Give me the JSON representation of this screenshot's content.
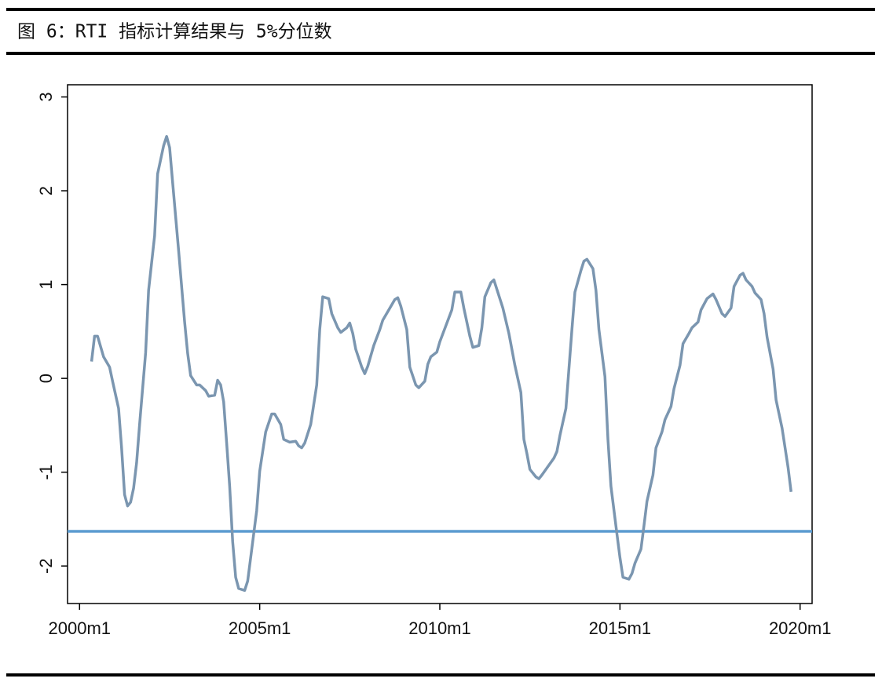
{
  "chart_data": {
    "type": "line",
    "title": "图 6：RTI 指标计算结果与 5%分位数",
    "color": "#7b96b0",
    "hline": -1.63,
    "hline_color": "#5b9bd0",
    "xlim": [
      "1999m9",
      "2020m5"
    ],
    "xticks": [
      "2000m1",
      "2005m1",
      "2010m1",
      "2015m1",
      "2020m1"
    ],
    "ylim": [
      -2.4,
      3.13
    ],
    "yticks": [
      -2,
      -1,
      0,
      1,
      2,
      3
    ],
    "x": [
      "2000m5",
      "2000m6",
      "2000m7",
      "2000m9",
      "2000m11",
      "2000m12",
      "2001m2",
      "2001m3",
      "2001m4",
      "2001m5",
      "2001m6",
      "2001m7",
      "2001m8",
      "2001m9",
      "2001m11",
      "2001m12",
      "2002m2",
      "2002m3",
      "2002m5",
      "2002m6",
      "2002m7",
      "2002m8",
      "2002m10",
      "2002m12",
      "2003m1",
      "2003m2",
      "2003m4",
      "2003m5",
      "2003m7",
      "2003m8",
      "2003m10",
      "2003m11",
      "2003m12",
      "2004m1",
      "2004m2",
      "2004m3",
      "2004m4",
      "2004m5",
      "2004m6",
      "2004m8",
      "2004m9",
      "2004m10",
      "2004m12",
      "2005m1",
      "2005m3",
      "2005m5",
      "2005m6",
      "2005m8",
      "2005m9",
      "2005m11",
      "2006m1",
      "2006m2",
      "2006m3",
      "2006m4",
      "2006m6",
      "2006m8",
      "2006m9",
      "2006m10",
      "2006m12",
      "2007m1",
      "2007m3",
      "2007m4",
      "2007m6",
      "2007m7",
      "2007m8",
      "2007m9",
      "2007m11",
      "2007m12",
      "2008m1",
      "2008m3",
      "2008m5",
      "2008m6",
      "2008m8",
      "2008m10",
      "2008m11",
      "2008m12",
      "2009m2",
      "2009m3",
      "2009m5",
      "2009m6",
      "2009m8",
      "2009m9",
      "2009m10",
      "2009m12",
      "2010m1",
      "2010m3",
      "2010m5",
      "2010m6",
      "2010m8",
      "2010m9",
      "2010m11",
      "2010m12",
      "2011m2",
      "2011m3",
      "2011m4",
      "2011m6",
      "2011m7",
      "2011m8",
      "2011m10",
      "2011m12",
      "2012m1",
      "2012m2",
      "2012m4",
      "2012m5",
      "2012m6",
      "2012m7",
      "2012m9",
      "2012m10",
      "2012m11",
      "2013m1",
      "2013m3",
      "2013m4",
      "2013m5",
      "2013m7",
      "2013m8",
      "2013m9",
      "2013m10",
      "2013m12",
      "2014m1",
      "2014m2",
      "2014m4",
      "2014m5",
      "2014m6",
      "2014m8",
      "2014m9",
      "2014m10",
      "2014m12",
      "2015m1",
      "2015m2",
      "2015m4",
      "2015m5",
      "2015m6",
      "2015m8",
      "2015m9",
      "2015m10",
      "2015m12",
      "2016m1",
      "2016m3",
      "2016m4",
      "2016m6",
      "2016m7",
      "2016m9",
      "2016m10",
      "2016m12",
      "2017m1",
      "2017m3",
      "2017m4",
      "2017m6",
      "2017m8",
      "2017m9",
      "2017m11",
      "2017m12",
      "2018m2",
      "2018m3",
      "2018m5",
      "2018m6",
      "2018m7",
      "2018m9",
      "2018m10",
      "2018m12",
      "2019m1",
      "2019m2",
      "2019m4",
      "2019m5",
      "2019m7",
      "2019m8",
      "2019m9",
      "2019m10"
    ],
    "values": [
      0.18,
      0.45,
      0.45,
      0.23,
      0.12,
      -0.03,
      -0.32,
      -0.74,
      -1.24,
      -1.36,
      -1.32,
      -1.17,
      -0.9,
      -0.49,
      0.27,
      0.94,
      1.52,
      2.18,
      2.48,
      2.58,
      2.46,
      2.09,
      1.36,
      0.6,
      0.27,
      0.03,
      -0.07,
      -0.07,
      -0.13,
      -0.19,
      -0.18,
      -0.02,
      -0.07,
      -0.25,
      -0.69,
      -1.15,
      -1.74,
      -2.12,
      -2.24,
      -2.26,
      -2.16,
      -1.91,
      -1.41,
      -0.99,
      -0.57,
      -0.38,
      -0.38,
      -0.49,
      -0.65,
      -0.68,
      -0.67,
      -0.72,
      -0.74,
      -0.69,
      -0.49,
      -0.07,
      0.52,
      0.87,
      0.85,
      0.69,
      0.54,
      0.49,
      0.54,
      0.59,
      0.48,
      0.31,
      0.12,
      0.05,
      0.13,
      0.35,
      0.52,
      0.62,
      0.73,
      0.84,
      0.86,
      0.77,
      0.52,
      0.12,
      -0.07,
      -0.1,
      -0.03,
      0.15,
      0.23,
      0.28,
      0.39,
      0.56,
      0.73,
      0.92,
      0.92,
      0.75,
      0.45,
      0.33,
      0.35,
      0.54,
      0.87,
      1.02,
      1.05,
      0.95,
      0.75,
      0.48,
      0.31,
      0.14,
      -0.15,
      -0.65,
      -0.8,
      -0.97,
      -1.05,
      -1.07,
      -1.03,
      -0.94,
      -0.85,
      -0.78,
      -0.61,
      -0.32,
      0.1,
      0.52,
      0.92,
      1.15,
      1.25,
      1.27,
      1.17,
      0.94,
      0.52,
      0.02,
      -0.65,
      -1.15,
      -1.66,
      -1.91,
      -2.12,
      -2.14,
      -2.08,
      -1.97,
      -1.82,
      -1.57,
      -1.31,
      -1.03,
      -0.74,
      -0.57,
      -0.44,
      -0.3,
      -0.11,
      0.14,
      0.37,
      0.48,
      0.54,
      0.6,
      0.73,
      0.85,
      0.9,
      0.84,
      0.69,
      0.66,
      0.75,
      0.98,
      1.1,
      1.12,
      1.05,
      0.98,
      0.91,
      0.84,
      0.69,
      0.44,
      0.1,
      -0.23,
      -0.53,
      -0.74,
      -0.95,
      -1.21
    ]
  }
}
